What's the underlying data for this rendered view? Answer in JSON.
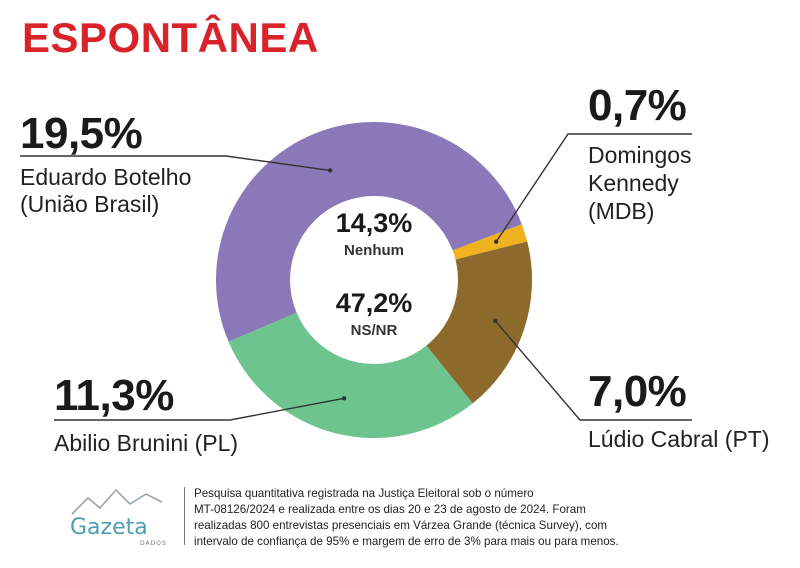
{
  "title": "ESPONTÂNEA",
  "chart_data": {
    "type": "pie",
    "slices": [
      {
        "pct_label": "19,5%",
        "value": 19.5,
        "name_lines": [
          "Eduardo Botelho",
          "(União Brasil)"
        ],
        "color": "#8b78b8"
      },
      {
        "pct_label": "0,7%",
        "value": 0.7,
        "name_lines": [
          "Domingos",
          "Kennedy",
          "(MDB)"
        ],
        "color": "#f0b21e"
      },
      {
        "pct_label": "7,0%",
        "value": 7.0,
        "name_lines": [
          "Lúdio Cabral (PT)"
        ],
        "color": "#8c6a2c"
      },
      {
        "pct_label": "11,3%",
        "value": 11.3,
        "name_lines": [
          "Abilio Brunini (PL)"
        ],
        "color": "#6dc48e"
      }
    ],
    "center": [
      {
        "pct_label": "14,3%",
        "value": 14.3,
        "label": "Nenhum"
      },
      {
        "pct_label": "47,2%",
        "value": 47.2,
        "label": "NS/NR"
      }
    ]
  },
  "footer": {
    "logo_text": "Gazeta",
    "logo_sub": "DADOS",
    "note_lines": [
      "Pesquisa quantitativa registrada na Justiça Eleitoral sob o número",
      "MT-08126/2024 e realizada entre os dias 20 e 23 de agosto de 2024. Foram",
      "realizadas 800 entrevistas presenciais em Várzea Grande (técnica Survey), com",
      "intervalo de confiança de 95% e margem de erro de 3% para mais ou para menos."
    ]
  },
  "colors": {
    "title": "#d8232a",
    "leader_line": "#333333",
    "logo": "#4a9fb0"
  }
}
